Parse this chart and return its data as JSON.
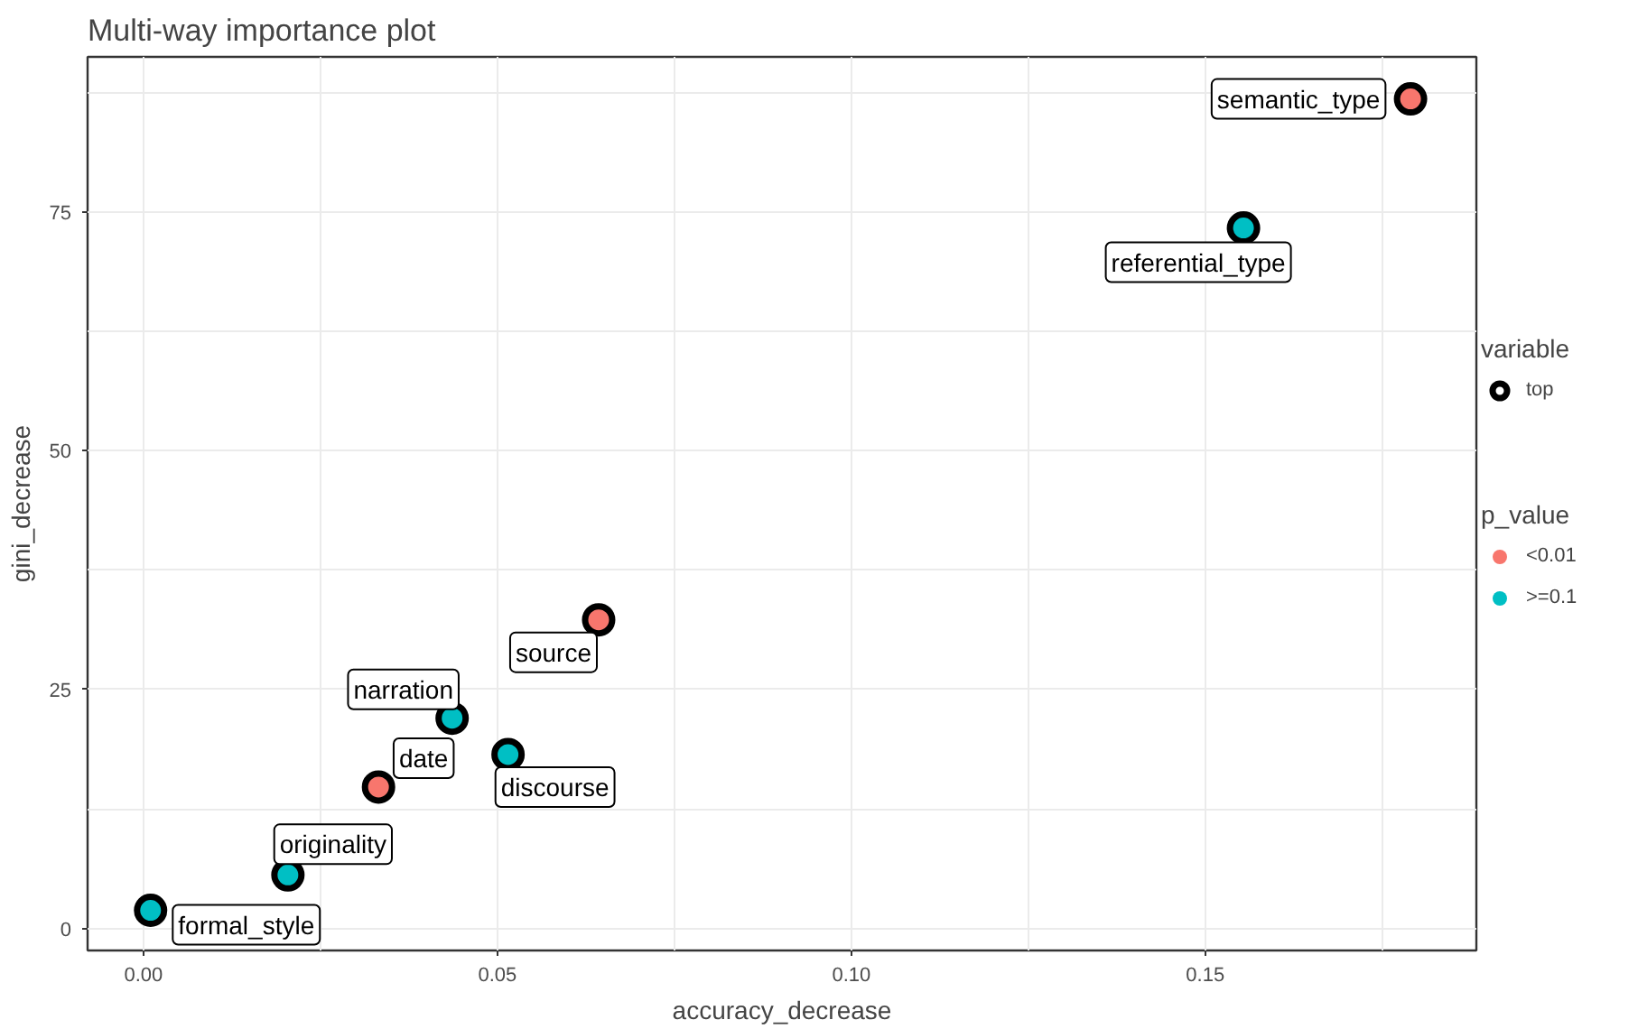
{
  "chart_data": {
    "type": "scatter",
    "title": "Multi-way importance plot",
    "xlabel": "accuracy_decrease",
    "ylabel": "gini_decrease",
    "legend_title": "p_value",
    "legend": "right",
    "grid": true,
    "marker": "circle",
    "xlim": [
      -0.0079,
      0.1883
    ],
    "ylim": [
      -2.3,
      91.2
    ],
    "xticks": [
      {
        "value": 0,
        "label": "0.00"
      },
      {
        "value": 0.05,
        "label": "0.05"
      },
      {
        "value": 0.1,
        "label": "0.10"
      },
      {
        "value": 0.15,
        "label": "0.15"
      }
    ],
    "yticks": [
      0,
      25,
      50,
      75
    ],
    "series": [
      {
        "name": "<0.01",
        "color": "#f8766d",
        "x": [
          0.0332,
          0.0643,
          0.179
        ],
        "values": [
          14.8,
          32.3,
          86.8
        ]
      },
      {
        "name": ">=0.1",
        "color": "#00bfc4",
        "x": [
          0.001,
          0.0204,
          0.0436,
          0.0515,
          0.1554
        ],
        "values": [
          1.9,
          5.6,
          22.0,
          18.2,
          73.3
        ]
      }
    ],
    "annotations": [
      {
        "text": "formal_style",
        "x": 0.001,
        "y": 1.9
      },
      {
        "text": "originality",
        "x": 0.0204,
        "y": 5.6
      },
      {
        "text": "date",
        "x": 0.0332,
        "y": 14.8
      },
      {
        "text": "narration",
        "x": 0.0436,
        "y": 22.0
      },
      {
        "text": "discourse",
        "x": 0.0515,
        "y": 18.2
      },
      {
        "text": "source",
        "x": 0.0643,
        "y": 32.3
      },
      {
        "text": "referential_type",
        "x": 0.1554,
        "y": 73.3
      },
      {
        "text": "semantic_type",
        "x": 0.179,
        "y": 86.8
      },
      "variable",
      "top"
    ]
  }
}
